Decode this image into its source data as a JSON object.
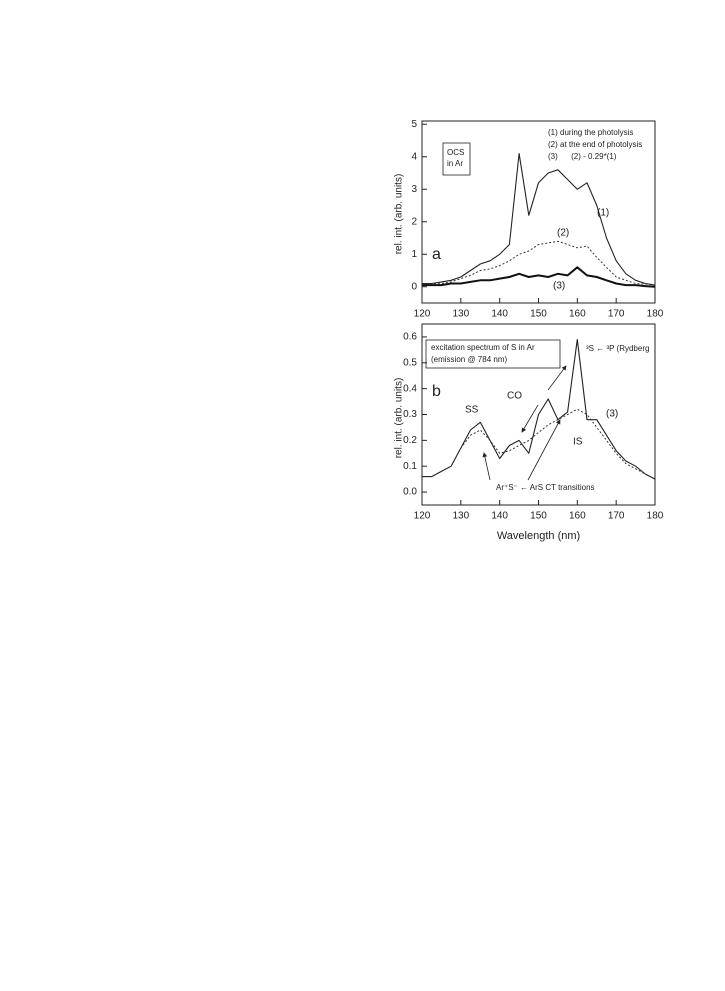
{
  "chart_data": [
    {
      "type": "line",
      "panel_label": "a",
      "ylabel": "rel. int. (arb. units)",
      "annotations": [
        "(1) during the photolysis",
        "(2) at the end of photolysis",
        "(3)      (2) - 0.29*(1)",
        "OCS",
        "in Ar"
      ],
      "x": [
        120,
        122.5,
        125,
        127.5,
        130,
        132.5,
        135,
        137.5,
        140,
        142.5,
        145,
        147.5,
        150,
        152.5,
        155,
        157.5,
        160,
        162.5,
        165,
        167.5,
        170,
        172.5,
        175,
        177.5,
        180
      ],
      "series": [
        {
          "name": "(1)",
          "color": "#222222",
          "dash": false,
          "values": [
            0.1,
            0.1,
            0.15,
            0.2,
            0.3,
            0.5,
            0.7,
            0.8,
            1.0,
            1.3,
            4.1,
            2.2,
            3.2,
            3.5,
            3.6,
            3.3,
            3.0,
            3.2,
            2.5,
            1.5,
            0.8,
            0.4,
            0.2,
            0.1,
            0.05
          ]
        },
        {
          "name": "(2)",
          "color": "#333333",
          "dash": true,
          "values": [
            0.05,
            0.08,
            0.1,
            0.15,
            0.25,
            0.35,
            0.5,
            0.55,
            0.65,
            0.8,
            1.0,
            1.1,
            1.3,
            1.35,
            1.4,
            1.3,
            1.2,
            1.25,
            0.9,
            0.6,
            0.3,
            0.2,
            0.1,
            0.08,
            0.05
          ]
        },
        {
          "name": "(3)",
          "color": "#111111",
          "dash": false,
          "values": [
            0.05,
            0.05,
            0.05,
            0.1,
            0.1,
            0.15,
            0.2,
            0.2,
            0.25,
            0.3,
            0.4,
            0.3,
            0.35,
            0.3,
            0.4,
            0.35,
            0.6,
            0.35,
            0.3,
            0.2,
            0.1,
            0.05,
            0.05,
            0.02,
            0.0
          ]
        }
      ],
      "xlim": [
        120,
        180
      ],
      "xticks": [
        120,
        130,
        140,
        150,
        160,
        170,
        180
      ],
      "ylim": [
        -0.5,
        5.1
      ],
      "yticks": [
        0,
        1,
        2,
        3,
        4,
        5
      ]
    },
    {
      "type": "line",
      "panel_label": "b",
      "ylabel": "rel. int. (arb. units)",
      "xlabel": "Wavelength (nm)",
      "annotations": [
        "excitation spectrum of S in Ar",
        "(emission @ 784 nm)",
        "³S ← ³P (Rydberg",
        "SS",
        "CO",
        "Ar⁺S⁻ ← ArS CT transitions"
      ],
      "x": [
        120,
        122.5,
        125,
        127.5,
        130,
        132.5,
        135,
        137.5,
        140,
        142.5,
        145,
        147.5,
        150,
        152.5,
        155,
        157.5,
        160,
        162.5,
        165,
        167.5,
        170,
        172.5,
        175,
        177.5,
        180
      ],
      "series": [
        {
          "name": "(3)",
          "color": "#222222",
          "dash": false,
          "values": [
            0.06,
            0.06,
            0.08,
            0.1,
            0.17,
            0.24,
            0.27,
            0.2,
            0.13,
            0.18,
            0.2,
            0.15,
            0.3,
            0.36,
            0.28,
            0.31,
            0.59,
            0.28,
            0.28,
            0.22,
            0.16,
            0.12,
            0.1,
            0.07,
            0.05
          ]
        },
        {
          "name": "IS",
          "color": "#333333",
          "dash": true,
          "values": [
            0.06,
            0.06,
            0.08,
            0.1,
            0.17,
            0.22,
            0.24,
            0.2,
            0.15,
            0.16,
            0.18,
            0.2,
            0.23,
            0.26,
            0.28,
            0.3,
            0.32,
            0.3,
            0.25,
            0.2,
            0.15,
            0.11,
            0.09,
            0.07,
            0.05
          ]
        }
      ],
      "xlim": [
        120,
        180
      ],
      "xticks": [
        120,
        130,
        140,
        150,
        160,
        170,
        180
      ],
      "ylim": [
        -0.05,
        0.65
      ],
      "yticks": [
        {
          "value": 0,
          "label": "0.0"
        },
        0.1,
        0.2,
        0.3,
        0.4,
        0.5,
        0.6
      ]
    }
  ]
}
